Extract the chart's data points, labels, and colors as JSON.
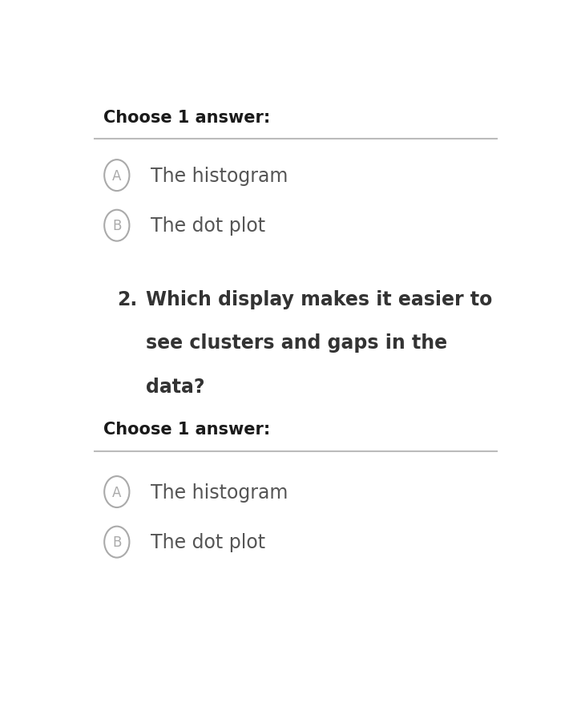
{
  "background_color": "#ffffff",
  "choose_label": "Choose 1 answer:",
  "choose_label_fontsize": 15,
  "choose_label_bold": true,
  "choose_label_color": "#1a1a1a",
  "separator_color": "#bbbbbb",
  "separator_lw": 1.5,
  "question_number": "2.",
  "question_text_line1": "Which display makes it easier to",
  "question_text_line2": "see clusters and gaps in the",
  "question_text_line3": "data?",
  "question_fontsize": 17,
  "question_color": "#333333",
  "option_A_label": "A",
  "option_B_label": "B",
  "option_1_text": "The histogram",
  "option_2_text": "The dot plot",
  "option_fontsize": 17,
  "option_text_color": "#555555",
  "circle_color": "#aaaaaa",
  "circle_lw": 1.5
}
